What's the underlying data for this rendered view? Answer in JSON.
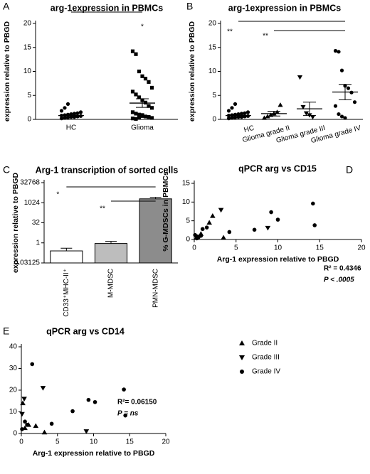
{
  "chart_data": [
    {
      "type": "dot",
      "panel": "A",
      "title": "arg-1expression in  PBMCs",
      "ylabel": "expression relative to  PBGD",
      "categories": [
        "HC",
        "Glioma"
      ],
      "markers": [
        "circle",
        "square"
      ],
      "color": "#000000",
      "values": [
        [
          0.2,
          0.3,
          0.4,
          0.5,
          0.5,
          0.6,
          0.7,
          0.8,
          0.9,
          1.0,
          1.1,
          1.2,
          1.3,
          1.5,
          1.8,
          2.4,
          3.2
        ],
        [
          14.2,
          13.6,
          10.0,
          9.0,
          8.5,
          7.8,
          6.6,
          5.8,
          5.2,
          4.6,
          4.0,
          3.5,
          2.8,
          2.4,
          1.5,
          1.2,
          1.0,
          0.9,
          0.6,
          0.5,
          0.3,
          0.2,
          0.1,
          0.4,
          0.7
        ]
      ],
      "mean": [
        0.8,
        3.4
      ],
      "sem": [
        0.2,
        0.9
      ],
      "ylim": [
        0,
        20
      ],
      "yticks": [
        0,
        5,
        10,
        15,
        20
      ],
      "annotations": [
        "*"
      ]
    },
    {
      "type": "dot",
      "panel": "B",
      "title": "arg-1expression in  PBMCs",
      "ylabel": "expression relative to  PBGD",
      "categories": [
        "HC",
        "Glioma grade II",
        "Glioma grade III",
        "Glioma grade IV"
      ],
      "markers": [
        "circle",
        "triangle-up",
        "triangle-down",
        "circle"
      ],
      "color": "#000000",
      "values": [
        [
          0.2,
          0.3,
          0.4,
          0.5,
          0.5,
          0.6,
          0.7,
          0.8,
          0.9,
          1.0,
          1.1,
          1.2,
          1.3,
          1.5,
          1.8,
          2.4,
          3.2
        ],
        [
          0.3,
          0.6,
          0.9,
          1.2,
          1.5,
          3.0
        ],
        [
          8.8,
          2.6,
          1.3,
          0.9,
          0.5
        ],
        [
          14.3,
          14.1,
          10.2,
          7.0,
          6.5,
          5.6,
          3.6,
          2.8,
          1.1,
          0.6,
          0.3
        ]
      ],
      "mean": [
        0.8,
        1.2,
        2.2,
        5.7
      ],
      "sem": [
        0.2,
        0.5,
        1.4,
        1.6
      ],
      "ylim": [
        0,
        20
      ],
      "yticks": [
        0,
        5,
        10,
        15,
        20
      ],
      "annotations": [
        "**",
        "**"
      ]
    },
    {
      "type": "bar",
      "panel": "C",
      "title": "Arg-1 transcription of sorted cells",
      "ylabel": "expression relative to  PBGD",
      "categories": [
        "CD33⁺MHC-II⁺",
        "M-MDSC",
        "PMN-MDSC"
      ],
      "colors": [
        "#ffffff",
        "#bdbdbd",
        "#8c8c8c"
      ],
      "values": [
        0.25,
        0.9,
        2000
      ],
      "errors": [
        0.15,
        0.4,
        600
      ],
      "log_base": 2,
      "ylim": [
        0.03125,
        32768
      ],
      "yticks": [
        0.03125,
        1,
        32,
        1024,
        32768
      ],
      "annotations": [
        "*",
        "**"
      ]
    },
    {
      "type": "scatter",
      "panel": "D",
      "title": "qPCR arg vs CD15",
      "xlabel": "Arg-1 expression relative to PBGD",
      "ylabel": "% G-MDSCs in PBMCs",
      "xlim": [
        0,
        20
      ],
      "xticks": [
        0,
        5,
        10,
        15,
        20
      ],
      "ylim": [
        0,
        15
      ],
      "yticks": [
        0,
        5,
        10,
        15
      ],
      "series": [
        {
          "marker": "triangle-up",
          "color": "#000000",
          "x": [
            0.3,
            0.8,
            1.8,
            2.2,
            3.5
          ],
          "values": [
            0.5,
            1.5,
            4.5,
            6.3,
            0.5
          ]
        },
        {
          "marker": "triangle-down",
          "color": "#000000",
          "x": [
            0.2,
            3.2,
            8.8
          ],
          "values": [
            0.8,
            7.9,
            3.1
          ]
        },
        {
          "marker": "circle",
          "color": "#000000",
          "x": [
            0.1,
            0.3,
            0.5,
            0.8,
            1.0,
            1.5,
            4.2,
            7.2,
            9.2,
            10.0,
            14.2,
            14.4
          ],
          "values": [
            1.2,
            0.3,
            0.6,
            1.0,
            2.8,
            3.2,
            2.0,
            2.6,
            7.3,
            5.3,
            9.6,
            3.8
          ]
        }
      ],
      "annotations": [
        "R² = 0.4346",
        "P < .0005"
      ]
    },
    {
      "type": "scatter",
      "panel": "E",
      "title": "qPCR arg vs CD14",
      "xlabel": "Arg-1 expression relative to PBGD",
      "ylabel": "%M-MDSCs of PBMC",
      "xlim": [
        0,
        20
      ],
      "xticks": [
        0,
        5,
        10,
        15,
        20
      ],
      "ylim": [
        0,
        40
      ],
      "yticks": [
        0,
        10,
        20,
        30,
        40
      ],
      "series": [
        {
          "name": "Grade II",
          "marker": "triangle-up",
          "color": "#000000",
          "x": [
            0.2,
            0.5,
            1.0,
            2.0,
            3.2
          ],
          "values": [
            14,
            2.5,
            4,
            3.5,
            0.5
          ]
        },
        {
          "name": "Grade III",
          "marker": "triangle-down",
          "color": "#000000",
          "x": [
            0.1,
            0.4,
            3.0,
            9.0
          ],
          "values": [
            9,
            16,
            21,
            1
          ]
        },
        {
          "name": "Grade IV",
          "marker": "circle",
          "color": "#000000",
          "x": [
            0.1,
            0.5,
            0.8,
            1.5,
            4.2,
            7.1,
            9.3,
            10.2,
            14.2,
            14.4
          ],
          "values": [
            2,
            5.5,
            4,
            32,
            4.5,
            10.3,
            15.5,
            14.5,
            20.3,
            8.3
          ]
        }
      ],
      "annotations": [
        "R²= 0.06150",
        "P = ns"
      ]
    }
  ]
}
